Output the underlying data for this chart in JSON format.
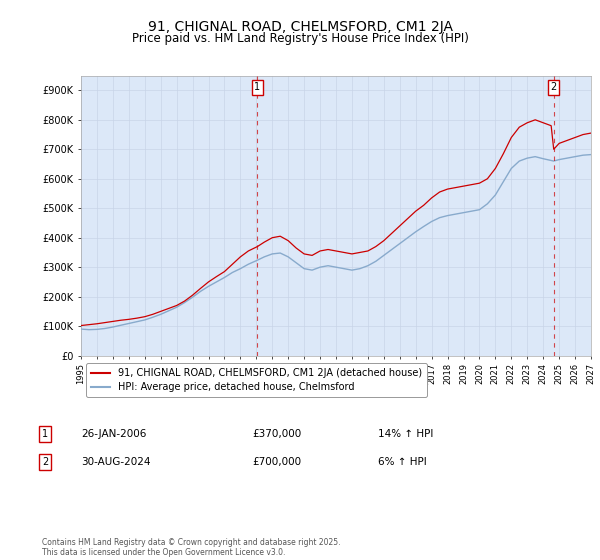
{
  "title": "91, CHIGNAL ROAD, CHELMSFORD, CM1 2JA",
  "subtitle": "Price paid vs. HM Land Registry's House Price Index (HPI)",
  "title_fontsize": 10,
  "subtitle_fontsize": 8.5,
  "background_color": "#ffffff",
  "grid_color": "#c8d4e8",
  "plot_bg_color": "#dce8f8",
  "red_line_color": "#cc0000",
  "blue_line_color": "#88aacc",
  "vline_color": "#cc0000",
  "legend_label_red": "91, CHIGNAL ROAD, CHELMSFORD, CM1 2JA (detached house)",
  "legend_label_blue": "HPI: Average price, detached house, Chelmsford",
  "annotation1_label": "1",
  "annotation1_date": "26-JAN-2006",
  "annotation1_price": "£370,000",
  "annotation1_hpi": "14% ↑ HPI",
  "annotation2_label": "2",
  "annotation2_date": "30-AUG-2024",
  "annotation2_price": "£700,000",
  "annotation2_hpi": "6% ↑ HPI",
  "footer": "Contains HM Land Registry data © Crown copyright and database right 2025.\nThis data is licensed under the Open Government Licence v3.0.",
  "ylim": [
    0,
    950000
  ],
  "yticks": [
    0,
    100000,
    200000,
    300000,
    400000,
    500000,
    600000,
    700000,
    800000,
    900000
  ],
  "ytick_labels": [
    "£0",
    "£100K",
    "£200K",
    "£300K",
    "£400K",
    "£500K",
    "£600K",
    "£700K",
    "£800K",
    "£900K"
  ],
  "xlim_start": 1995,
  "xlim_end": 2027,
  "vline1_x": 2006.07,
  "vline2_x": 2024.66,
  "red_data": [
    [
      1995.0,
      102000
    ],
    [
      1995.5,
      105000
    ],
    [
      1996.0,
      108000
    ],
    [
      1996.5,
      112000
    ],
    [
      1997.0,
      116000
    ],
    [
      1997.5,
      120000
    ],
    [
      1998.0,
      123000
    ],
    [
      1998.5,
      127000
    ],
    [
      1999.0,
      132000
    ],
    [
      1999.5,
      140000
    ],
    [
      2000.0,
      150000
    ],
    [
      2000.5,
      160000
    ],
    [
      2001.0,
      170000
    ],
    [
      2001.5,
      185000
    ],
    [
      2002.0,
      205000
    ],
    [
      2002.5,
      228000
    ],
    [
      2003.0,
      250000
    ],
    [
      2003.5,
      268000
    ],
    [
      2004.0,
      285000
    ],
    [
      2004.5,
      310000
    ],
    [
      2005.0,
      335000
    ],
    [
      2005.5,
      355000
    ],
    [
      2006.07,
      370000
    ],
    [
      2006.5,
      385000
    ],
    [
      2007.0,
      400000
    ],
    [
      2007.5,
      405000
    ],
    [
      2008.0,
      390000
    ],
    [
      2008.5,
      365000
    ],
    [
      2009.0,
      345000
    ],
    [
      2009.5,
      340000
    ],
    [
      2010.0,
      355000
    ],
    [
      2010.5,
      360000
    ],
    [
      2011.0,
      355000
    ],
    [
      2011.5,
      350000
    ],
    [
      2012.0,
      345000
    ],
    [
      2012.5,
      350000
    ],
    [
      2013.0,
      355000
    ],
    [
      2013.5,
      370000
    ],
    [
      2014.0,
      390000
    ],
    [
      2014.5,
      415000
    ],
    [
      2015.0,
      440000
    ],
    [
      2015.5,
      465000
    ],
    [
      2016.0,
      490000
    ],
    [
      2016.5,
      510000
    ],
    [
      2017.0,
      535000
    ],
    [
      2017.5,
      555000
    ],
    [
      2018.0,
      565000
    ],
    [
      2018.5,
      570000
    ],
    [
      2019.0,
      575000
    ],
    [
      2019.5,
      580000
    ],
    [
      2020.0,
      585000
    ],
    [
      2020.5,
      600000
    ],
    [
      2021.0,
      635000
    ],
    [
      2021.5,
      685000
    ],
    [
      2022.0,
      740000
    ],
    [
      2022.5,
      775000
    ],
    [
      2023.0,
      790000
    ],
    [
      2023.5,
      800000
    ],
    [
      2024.0,
      790000
    ],
    [
      2024.5,
      780000
    ],
    [
      2024.66,
      700000
    ],
    [
      2025.0,
      720000
    ],
    [
      2025.5,
      730000
    ],
    [
      2026.0,
      740000
    ],
    [
      2026.5,
      750000
    ],
    [
      2027.0,
      755000
    ]
  ],
  "blue_data": [
    [
      1995.0,
      90000
    ],
    [
      1995.5,
      88000
    ],
    [
      1996.0,
      89000
    ],
    [
      1996.5,
      92000
    ],
    [
      1997.0,
      97000
    ],
    [
      1997.5,
      103000
    ],
    [
      1998.0,
      109000
    ],
    [
      1998.5,
      115000
    ],
    [
      1999.0,
      121000
    ],
    [
      1999.5,
      130000
    ],
    [
      2000.0,
      140000
    ],
    [
      2000.5,
      152000
    ],
    [
      2001.0,
      164000
    ],
    [
      2001.5,
      180000
    ],
    [
      2002.0,
      198000
    ],
    [
      2002.5,
      218000
    ],
    [
      2003.0,
      235000
    ],
    [
      2003.5,
      250000
    ],
    [
      2004.0,
      265000
    ],
    [
      2004.5,
      282000
    ],
    [
      2005.0,
      295000
    ],
    [
      2005.5,
      310000
    ],
    [
      2006.0,
      322000
    ],
    [
      2006.5,
      335000
    ],
    [
      2007.0,
      345000
    ],
    [
      2007.5,
      348000
    ],
    [
      2008.0,
      335000
    ],
    [
      2008.5,
      315000
    ],
    [
      2009.0,
      295000
    ],
    [
      2009.5,
      290000
    ],
    [
      2010.0,
      300000
    ],
    [
      2010.5,
      305000
    ],
    [
      2011.0,
      300000
    ],
    [
      2011.5,
      295000
    ],
    [
      2012.0,
      290000
    ],
    [
      2012.5,
      295000
    ],
    [
      2013.0,
      305000
    ],
    [
      2013.5,
      320000
    ],
    [
      2014.0,
      340000
    ],
    [
      2014.5,
      360000
    ],
    [
      2015.0,
      380000
    ],
    [
      2015.5,
      400000
    ],
    [
      2016.0,
      420000
    ],
    [
      2016.5,
      438000
    ],
    [
      2017.0,
      455000
    ],
    [
      2017.5,
      468000
    ],
    [
      2018.0,
      475000
    ],
    [
      2018.5,
      480000
    ],
    [
      2019.0,
      485000
    ],
    [
      2019.5,
      490000
    ],
    [
      2020.0,
      495000
    ],
    [
      2020.5,
      515000
    ],
    [
      2021.0,
      545000
    ],
    [
      2021.5,
      590000
    ],
    [
      2022.0,
      635000
    ],
    [
      2022.5,
      660000
    ],
    [
      2023.0,
      670000
    ],
    [
      2023.5,
      675000
    ],
    [
      2024.0,
      668000
    ],
    [
      2024.5,
      662000
    ],
    [
      2024.66,
      660000
    ],
    [
      2025.0,
      665000
    ],
    [
      2025.5,
      670000
    ],
    [
      2026.0,
      675000
    ],
    [
      2026.5,
      680000
    ],
    [
      2027.0,
      682000
    ]
  ]
}
